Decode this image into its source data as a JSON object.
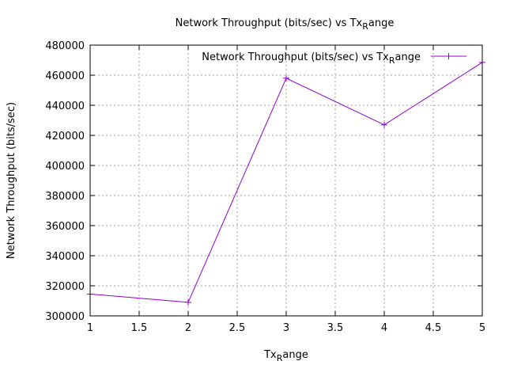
{
  "chart_data": {
    "type": "line",
    "title": "Network Throughput (bits/sec) vs Tx",
    "title_sub": "R",
    "title_tail": "ange",
    "xlabel": "Tx",
    "xlabel_sub": "R",
    "xlabel_tail": "ange",
    "ylabel": "Network Throughput (bits/sec)",
    "xlim": [
      1,
      5
    ],
    "ylim": [
      300000,
      480000
    ],
    "x_ticks": [
      "1",
      "1.5",
      "2",
      "2.5",
      "3",
      "3.5",
      "4",
      "4.5",
      "5"
    ],
    "y_ticks": [
      "300000",
      "320000",
      "340000",
      "360000",
      "380000",
      "400000",
      "420000",
      "440000",
      "460000",
      "480000"
    ],
    "grid": true,
    "legend": "top-right",
    "series": [
      {
        "name": "Network Throughput (bits/sec) vs Tx",
        "name_sub": "R",
        "name_tail": "ange",
        "color": "#9400d3",
        "x": [
          1,
          2,
          3,
          4,
          5
        ],
        "y": [
          314500,
          309000,
          458000,
          427000,
          468500
        ]
      }
    ]
  }
}
